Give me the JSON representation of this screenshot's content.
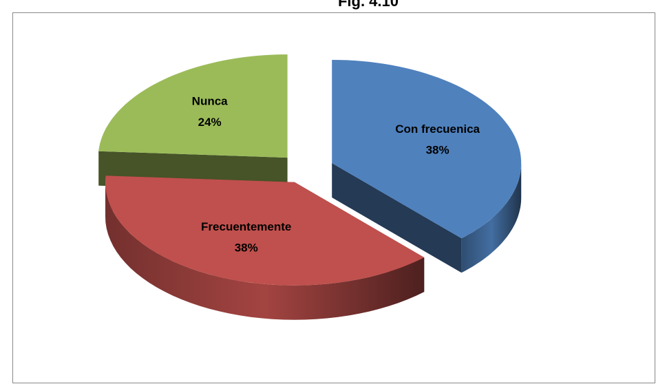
{
  "chart_data": {
    "type": "pie",
    "title": "Fig. 4.10",
    "categories": [
      "Con frecuenica",
      "Frecuentemente",
      "Nunca"
    ],
    "values": [
      38,
      38,
      24
    ],
    "value_labels": [
      "38%",
      "38%",
      "24%"
    ],
    "colors": [
      "#4f81bd",
      "#c0504d",
      "#9bbb59"
    ]
  }
}
